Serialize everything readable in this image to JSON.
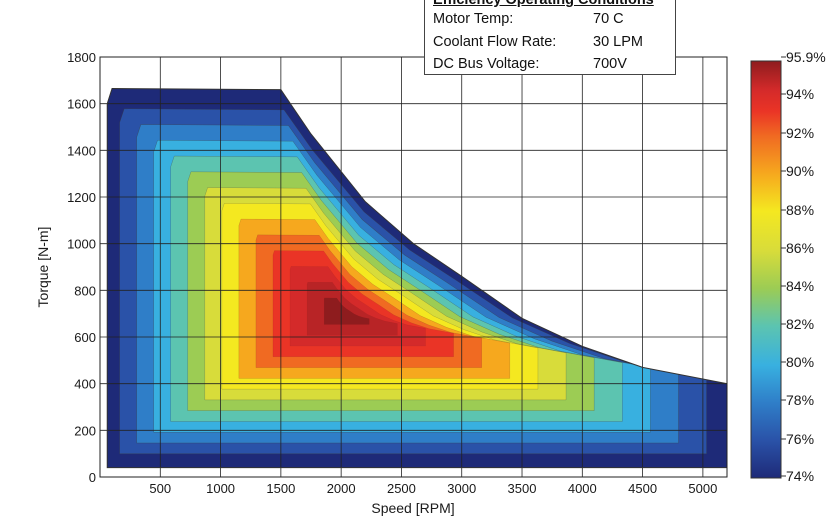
{
  "chart_data": {
    "type": "contour",
    "xlabel": "Speed [RPM]",
    "ylabel": "Torque [N-m]",
    "xlim": [
      0,
      5200
    ],
    "ylim": [
      0,
      1800
    ],
    "xticks": [
      500,
      1000,
      1500,
      2000,
      2500,
      3000,
      3500,
      4000,
      4500,
      5000
    ],
    "yticks": [
      0,
      200,
      400,
      600,
      800,
      1000,
      1200,
      1400,
      1600,
      1800
    ],
    "grid": true,
    "peak_torque_envelope": [
      {
        "speed": 100,
        "torque": 1665
      },
      {
        "speed": 1500,
        "torque": 1660
      },
      {
        "speed": 1750,
        "torque": 1470
      },
      {
        "speed": 2200,
        "torque": 1180
      },
      {
        "speed": 2600,
        "torque": 1000
      },
      {
        "speed": 3000,
        "torque": 860
      },
      {
        "speed": 3500,
        "torque": 680
      },
      {
        "speed": 4000,
        "torque": 560
      },
      {
        "speed": 4500,
        "torque": 470
      },
      {
        "speed": 5200,
        "torque": 400
      }
    ],
    "efficiency_peak": {
      "speed": 2000,
      "torque": 700,
      "efficiency_pct": 95.9
    },
    "colorbar": {
      "label_ticks": [
        "95.9%",
        "94%",
        "92%",
        "90%",
        "88%",
        "86%",
        "84%",
        "82%",
        "80%",
        "78%",
        "76%",
        "74%"
      ],
      "min_pct": 74,
      "max_pct": 95.9
    },
    "colors": {
      "c74": "#1e2a78",
      "c76": "#2a52a8",
      "c78": "#2f7ec8",
      "c80": "#38b0e0",
      "c82": "#5cc4b0",
      "c84": "#9ccc54",
      "c86": "#d8dc3a",
      "c88": "#f4e820",
      "c90": "#f6a81e",
      "c92": "#f06a22",
      "c93": "#ea3426",
      "c94": "#d42a2a",
      "c95": "#b82426",
      "c96": "#8e1c1e"
    }
  },
  "conditions": {
    "title": "Efficiency Operating Conditions",
    "rows": [
      {
        "label": "Motor Temp:",
        "value": "70 C"
      },
      {
        "label": "Coolant Flow Rate:",
        "value": "30 LPM"
      },
      {
        "label": "DC Bus Voltage:",
        "value": "700V"
      }
    ]
  }
}
